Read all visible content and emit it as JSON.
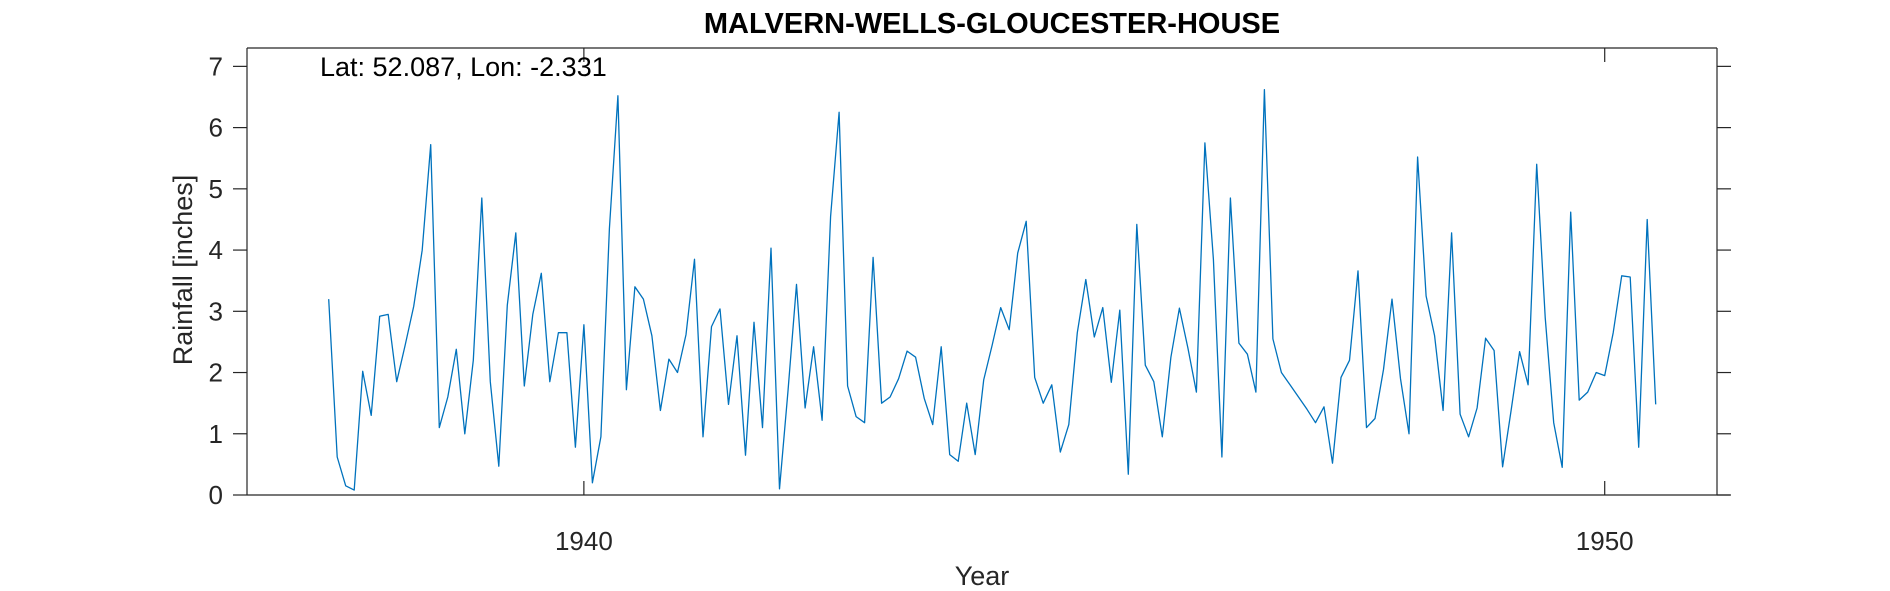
{
  "chart_data": {
    "type": "line",
    "title": "MALVERN-WELLS-GLOUCESTER-HOUSE",
    "annotation": "Lat: 52.087, Lon: -2.331",
    "xlabel": "Year",
    "ylabel": "Rainfall [inches]",
    "xlim": [
      1936.7,
      1951.1
    ],
    "ylim": [
      0,
      7.3
    ],
    "xticks": [
      1940,
      1950
    ],
    "xtick_labels": [
      "1940",
      "1950"
    ],
    "yticks": [
      0,
      1,
      2,
      3,
      4,
      5,
      6,
      7
    ],
    "ytick_labels": [
      "0",
      "1",
      "2",
      "3",
      "4",
      "5",
      "6",
      "7"
    ],
    "grid": false,
    "series": [
      {
        "name": "Rainfall",
        "color": "#0072BD",
        "x_start": 1937.5,
        "x_step": 0.0833333,
        "values": [
          3.2,
          0.62,
          0.15,
          0.08,
          2.02,
          1.3,
          2.92,
          2.95,
          1.85,
          2.45,
          3.08,
          4.0,
          5.72,
          1.1,
          1.6,
          2.38,
          1.0,
          2.2,
          4.85,
          1.85,
          0.47,
          3.1,
          4.28,
          1.78,
          2.95,
          3.62,
          1.85,
          2.65,
          2.65,
          0.78,
          2.78,
          0.2,
          0.95,
          4.35,
          6.52,
          1.72,
          3.4,
          3.2,
          2.6,
          1.38,
          2.22,
          2.0,
          2.62,
          3.85,
          0.95,
          2.75,
          3.04,
          1.48,
          2.6,
          0.65,
          2.82,
          1.1,
          4.03,
          0.1,
          1.7,
          3.44,
          1.42,
          2.42,
          1.22,
          4.55,
          6.25,
          1.78,
          1.28,
          1.18,
          3.88,
          1.5,
          1.6,
          1.9,
          2.35,
          2.25,
          1.58,
          1.15,
          2.42,
          0.66,
          0.55,
          1.5,
          0.66,
          1.88,
          2.45,
          3.06,
          2.7,
          3.95,
          4.47,
          1.92,
          1.5,
          1.8,
          0.7,
          1.15,
          2.65,
          3.52,
          2.58,
          3.06,
          1.84,
          3.02,
          0.34,
          4.42,
          2.12,
          1.85,
          0.95,
          2.25,
          3.05,
          2.4,
          1.68,
          5.75,
          3.85,
          0.62,
          4.85,
          2.48,
          2.3,
          1.68,
          6.62,
          2.55,
          2.0,
          1.8,
          1.6,
          1.4,
          1.18,
          1.44,
          0.52,
          1.92,
          2.2,
          3.66,
          1.1,
          1.25,
          2.05,
          3.2,
          1.9,
          1.0,
          5.52,
          3.25,
          2.6,
          1.38,
          4.28,
          1.32,
          0.95,
          1.42,
          2.56,
          2.36,
          0.46,
          1.38,
          2.34,
          1.8,
          5.4,
          2.9,
          1.18,
          0.45,
          4.62,
          1.55,
          1.68,
          2.0,
          1.95,
          2.65,
          3.58,
          3.56,
          0.78,
          4.5,
          1.48
        ]
      }
    ]
  }
}
